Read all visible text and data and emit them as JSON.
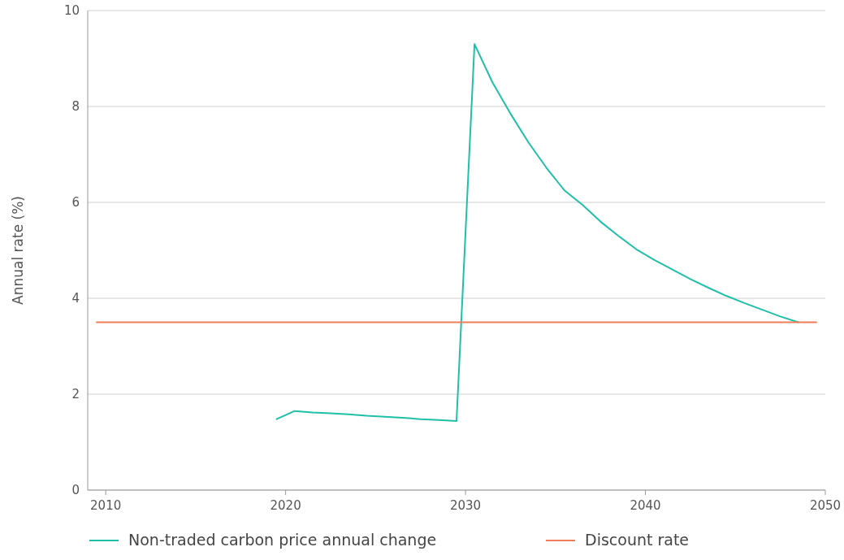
{
  "chart_data": {
    "type": "line",
    "ylabel": "Annual rate (%)",
    "xlim": [
      2009,
      2050
    ],
    "xticks": [
      2010,
      2020,
      2030,
      2040,
      2050
    ],
    "ylim": [
      0,
      10
    ],
    "yticks": [
      0,
      2,
      4,
      6,
      8,
      10
    ],
    "grid": "y",
    "legend": "bottom",
    "marker": "none",
    "line_style": "solid",
    "series": [
      {
        "name": "Non-traded carbon price annual change",
        "color": "#1fbfa8",
        "x": [
          2019.5,
          2020.5,
          2021.5,
          2022.5,
          2023.5,
          2024.5,
          2025.5,
          2026.5,
          2027.5,
          2028.5,
          2029.5,
          2030.5,
          2031.5,
          2032.5,
          2033.5,
          2034.5,
          2035.5,
          2036.5,
          2037.5,
          2038.5,
          2039.5,
          2040.5,
          2041.5,
          2042.5,
          2043.5,
          2044.5,
          2045.5,
          2046.5,
          2047.5,
          2048.5
        ],
        "values": [
          1.48,
          1.65,
          1.62,
          1.6,
          1.58,
          1.55,
          1.53,
          1.51,
          1.48,
          1.46,
          1.44,
          9.3,
          8.5,
          7.85,
          7.25,
          6.72,
          6.25,
          5.95,
          5.6,
          5.3,
          5.02,
          4.8,
          4.6,
          4.4,
          4.22,
          4.05,
          3.9,
          3.76,
          3.62,
          3.5
        ]
      },
      {
        "name": "Discount rate",
        "color": "#f07c5a",
        "x": [
          2009.5,
          2049.5
        ],
        "values": [
          3.5,
          3.5
        ]
      }
    ]
  }
}
